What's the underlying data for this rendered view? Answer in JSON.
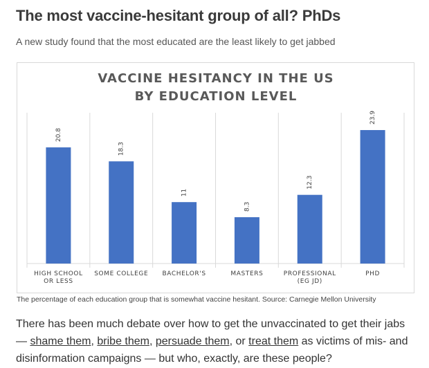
{
  "article": {
    "headline": "The most vaccine-hesitant group of all? PhDs",
    "subheadline": "A new study found that the most educated are the least likely to get jabbed",
    "caption": "The percentage of each education group that is somewhat vaccine hesitant. Source: Carnegie Mellon University",
    "body": {
      "p1": "There has been much debate over how to get the unvaccinated to get their jabs — ",
      "link1": "shame them",
      "sep1": ", ",
      "link2": "bribe them",
      "sep2": ", ",
      "link3": "persuade them",
      "sep3": ", or ",
      "link4": "treat them",
      "p2": " as victims of mis- and disinformation campaigns — but who, exactly, are these people?"
    }
  },
  "colors": {
    "bar": "#4472c4",
    "gridline": "#d9d9d9"
  },
  "chart_data": {
    "type": "bar",
    "title_lines": [
      "VACCINE HESITANCY IN THE US",
      "BY EDUCATION LEVEL"
    ],
    "categories": [
      [
        "HIGH SCHOOL",
        "OR LESS"
      ],
      [
        "SOME COLLEGE"
      ],
      [
        "BACHELOR'S"
      ],
      [
        "MASTERS"
      ],
      [
        "PROFESSIONAL",
        "(EG JD)"
      ],
      [
        "PHD"
      ]
    ],
    "values": [
      20.8,
      18.3,
      11,
      8.3,
      12.3,
      23.9
    ],
    "value_labels": [
      "20.8",
      "18.3",
      "11",
      "8.3",
      "12.3",
      "23.9"
    ],
    "ylim": [
      0,
      27
    ],
    "grid": "vertical separators"
  }
}
